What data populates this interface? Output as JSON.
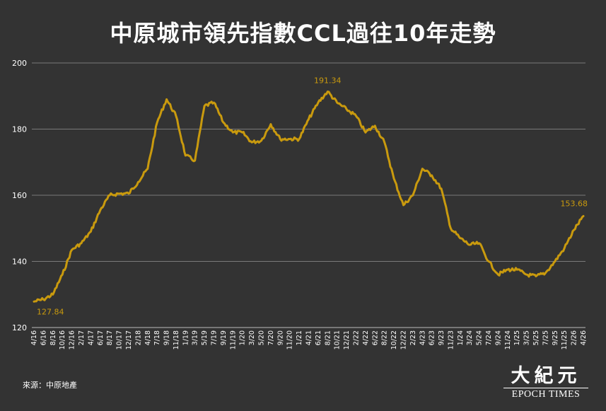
{
  "chart_data": {
    "type": "line",
    "title": "中原城市領先指數CCL過往10年走勢",
    "source": "來源：中原地產",
    "ylim": [
      120,
      200
    ],
    "yticks": [
      120,
      140,
      160,
      180,
      200
    ],
    "grid": true,
    "line_color": "#C99A0E",
    "x_tick_labels": [
      "4/16",
      "6/16",
      "8/16",
      "10/16",
      "12/16",
      "2/17",
      "4/17",
      "6/17",
      "8/17",
      "10/17",
      "12/17",
      "2/18",
      "4/18",
      "7/18",
      "9/18",
      "11/18",
      "1/19",
      "3/19",
      "5/19",
      "7/19",
      "9/19",
      "11/19",
      "1/20",
      "3/20",
      "5/20",
      "7/20",
      "9/20",
      "11/20",
      "1/21",
      "4/21",
      "6/21",
      "8/21",
      "10/21",
      "12/21",
      "2/22",
      "4/22",
      "6/22",
      "8/22",
      "10/22",
      "12/22",
      "2/23",
      "4/23",
      "6/23",
      "9/23",
      "11/23",
      "1/24",
      "3/24",
      "5/24",
      "7/24",
      "9/24",
      "11/24",
      "1/25",
      "3/25",
      "5/25",
      "7/25",
      "9/25",
      "11/25",
      "2/26",
      "4/26"
    ],
    "annotations": [
      {
        "label": "127.84",
        "x": "4/16",
        "value": 127.84
      },
      {
        "label": "191.34",
        "x": "8/21",
        "value": 191.34
      },
      {
        "label": "153.68",
        "x": "4/26",
        "value": 153.68
      }
    ],
    "series": [
      {
        "x": [
          "4/16",
          "6/16",
          "8/16",
          "10/16",
          "12/16",
          "2/17",
          "4/17",
          "6/17",
          "8/17",
          "10/17",
          "12/17",
          "2/18",
          "4/18",
          "7/18",
          "9/18",
          "11/18",
          "1/19",
          "3/19",
          "5/19",
          "7/19",
          "9/19",
          "11/19",
          "1/20",
          "3/20",
          "5/20",
          "7/20",
          "9/20",
          "11/20",
          "1/21",
          "4/21",
          "6/21",
          "8/21",
          "10/21",
          "12/21",
          "2/22",
          "4/22",
          "6/22",
          "8/22",
          "10/22",
          "12/22",
          "2/23",
          "4/23",
          "6/23",
          "9/23",
          "11/23",
          "1/24",
          "3/24",
          "5/24",
          "7/24",
          "9/24",
          "11/24",
          "1/25",
          "3/25",
          "5/25",
          "7/25",
          "9/25",
          "11/25",
          "2/26",
          "4/26"
        ],
        "values": [
          127.84,
          128.5,
          130,
          136,
          143.5,
          145.5,
          149,
          155.5,
          160,
          160.5,
          160.5,
          164,
          168,
          182,
          189,
          184,
          172,
          170.5,
          187,
          188,
          182,
          179,
          179,
          176,
          176.5,
          181.5,
          177,
          177,
          177,
          183,
          188,
          191.34,
          188,
          186,
          184,
          179,
          181,
          176,
          165,
          157,
          160,
          168,
          166,
          162,
          150,
          147,
          145,
          145.5,
          140,
          136,
          137.5,
          137.5,
          136,
          135.5,
          136.5,
          140,
          144,
          149.5,
          153.68
        ]
      }
    ]
  },
  "logo": {
    "mark": "大紀元",
    "text": "EPOCH TIMES"
  }
}
